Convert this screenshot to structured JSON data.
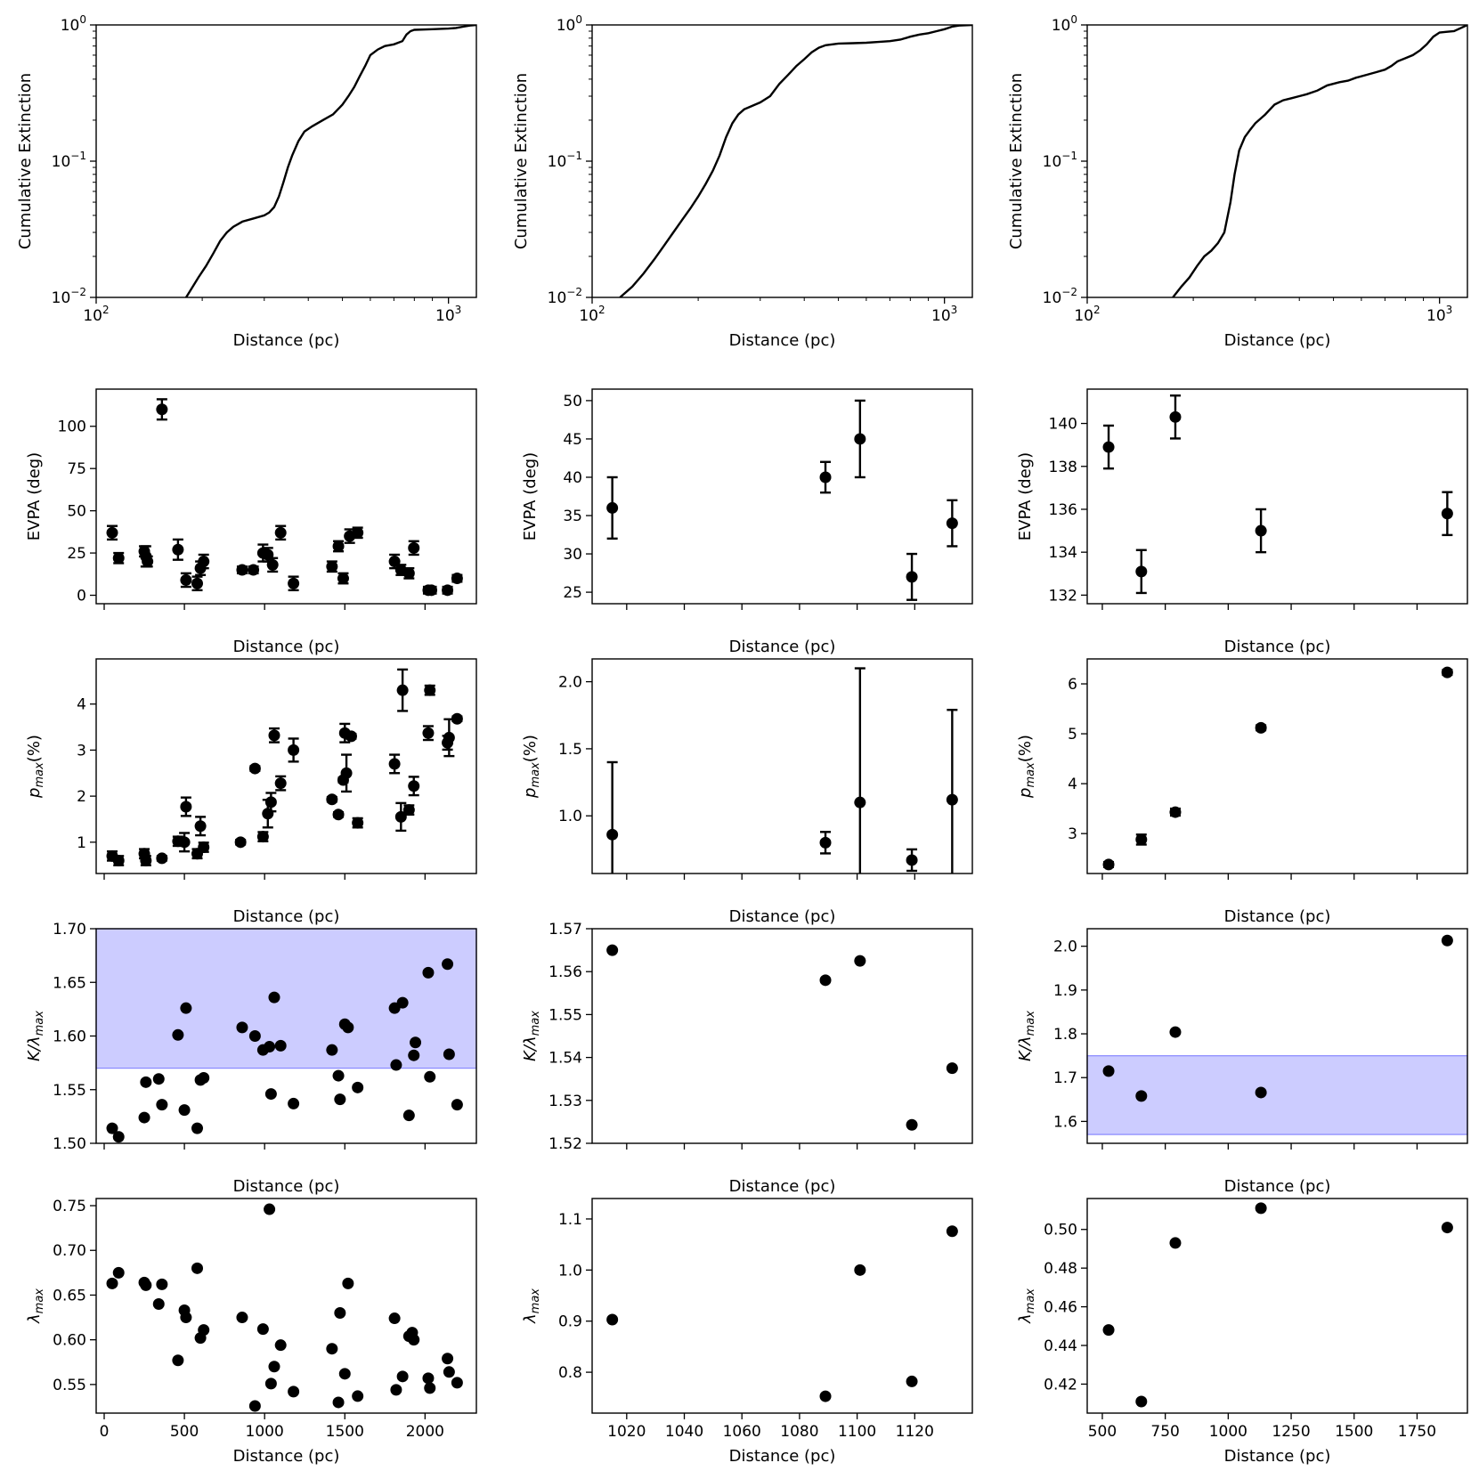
{
  "chart_data": [
    {
      "id": "p1",
      "type": "line",
      "xlabel": "Distance (pc)",
      "ylabel": "Cumulative Extinction",
      "xscale": "log",
      "yscale": "log",
      "xlim": [
        100,
        1200
      ],
      "ylim": [
        0.01,
        1
      ],
      "xticks": [
        {
          "v": 100,
          "label": "10",
          "sup": "2"
        },
        {
          "v": 1000,
          "label": "10",
          "sup": "3"
        }
      ],
      "yticks": [
        {
          "v": 0.01,
          "label": "10",
          "sup": "−2"
        },
        {
          "v": 0.1,
          "label": "10",
          "sup": "−1"
        },
        {
          "v": 1,
          "label": "10",
          "sup": "0"
        }
      ],
      "series": [
        {
          "name": "cumulative",
          "x": [
            180,
            188,
            195,
            205,
            215,
            225,
            235,
            245,
            260,
            280,
            300,
            310,
            320,
            330,
            340,
            350,
            360,
            375,
            390,
            410,
            440,
            470,
            500,
            520,
            540,
            560,
            580,
            600,
            630,
            660,
            700,
            740,
            760,
            780,
            800,
            900,
            1000,
            1050,
            1100,
            1150,
            1200
          ],
          "y": [
            0.01,
            0.012,
            0.014,
            0.017,
            0.021,
            0.026,
            0.03,
            0.033,
            0.036,
            0.038,
            0.04,
            0.042,
            0.046,
            0.055,
            0.07,
            0.09,
            0.11,
            0.14,
            0.165,
            0.18,
            0.2,
            0.22,
            0.26,
            0.3,
            0.35,
            0.42,
            0.5,
            0.6,
            0.66,
            0.7,
            0.72,
            0.76,
            0.85,
            0.9,
            0.92,
            0.93,
            0.94,
            0.95,
            0.97,
            0.99,
            1.0
          ]
        }
      ]
    },
    {
      "id": "p2",
      "type": "line",
      "xlabel": "Distance (pc)",
      "ylabel": "Cumulative Extinction",
      "xscale": "log",
      "yscale": "log",
      "xlim": [
        100,
        1200
      ],
      "ylim": [
        0.01,
        1
      ],
      "xticks": [
        {
          "v": 100,
          "label": "10",
          "sup": "2"
        },
        {
          "v": 1000,
          "label": "10",
          "sup": "3"
        }
      ],
      "yticks": [
        {
          "v": 0.01,
          "label": "10",
          "sup": "−2"
        },
        {
          "v": 0.1,
          "label": "10",
          "sup": "−1"
        },
        {
          "v": 1,
          "label": "10",
          "sup": "0"
        }
      ],
      "series": [
        {
          "name": "cumulative",
          "x": [
            120,
            130,
            140,
            150,
            160,
            170,
            180,
            190,
            200,
            210,
            220,
            230,
            240,
            250,
            260,
            270,
            280,
            290,
            300,
            320,
            340,
            360,
            380,
            400,
            420,
            440,
            460,
            500,
            550,
            600,
            650,
            700,
            750,
            800,
            850,
            900,
            950,
            1000,
            1050,
            1100,
            1200
          ],
          "y": [
            0.01,
            0.012,
            0.015,
            0.019,
            0.024,
            0.03,
            0.037,
            0.045,
            0.055,
            0.068,
            0.085,
            0.11,
            0.15,
            0.19,
            0.22,
            0.24,
            0.25,
            0.26,
            0.27,
            0.3,
            0.37,
            0.43,
            0.5,
            0.56,
            0.63,
            0.68,
            0.71,
            0.73,
            0.735,
            0.74,
            0.75,
            0.76,
            0.78,
            0.82,
            0.85,
            0.87,
            0.9,
            0.93,
            0.97,
            0.99,
            1.0
          ]
        }
      ]
    },
    {
      "id": "p3",
      "type": "line",
      "xlabel": "Distance (pc)",
      "ylabel": "Cumulative Extinction",
      "xscale": "log",
      "yscale": "log",
      "xlim": [
        100,
        1200
      ],
      "ylim": [
        0.01,
        1
      ],
      "xticks": [
        {
          "v": 100,
          "label": "10",
          "sup": "2"
        },
        {
          "v": 1000,
          "label": "10",
          "sup": "3"
        }
      ],
      "yticks": [
        {
          "v": 0.01,
          "label": "10",
          "sup": "−2"
        },
        {
          "v": 0.1,
          "label": "10",
          "sup": "−1"
        },
        {
          "v": 1,
          "label": "10",
          "sup": "0"
        }
      ],
      "series": [
        {
          "name": "cumulative",
          "x": [
            175,
            185,
            195,
            205,
            215,
            225,
            235,
            245,
            255,
            262,
            270,
            280,
            290,
            300,
            320,
            340,
            360,
            380,
            400,
            420,
            450,
            480,
            500,
            520,
            550,
            580,
            620,
            660,
            700,
            730,
            760,
            800,
            840,
            880,
            920,
            960,
            1000,
            1050,
            1100,
            1150,
            1200
          ],
          "y": [
            0.01,
            0.012,
            0.014,
            0.017,
            0.02,
            0.022,
            0.025,
            0.03,
            0.05,
            0.08,
            0.12,
            0.15,
            0.17,
            0.19,
            0.22,
            0.26,
            0.28,
            0.29,
            0.3,
            0.31,
            0.33,
            0.36,
            0.37,
            0.38,
            0.39,
            0.41,
            0.43,
            0.45,
            0.47,
            0.5,
            0.54,
            0.57,
            0.6,
            0.65,
            0.72,
            0.82,
            0.88,
            0.89,
            0.9,
            0.95,
            1.0
          ]
        }
      ]
    },
    {
      "id": "p4",
      "type": "scatter",
      "xlabel": "Distance (pc)",
      "ylabel": "EVPA (deg)",
      "xlim": [
        -50,
        2320
      ],
      "ylim": [
        -5,
        122
      ],
      "yticks": [
        0,
        25,
        50,
        75,
        100
      ],
      "xticks": [
        0,
        500,
        1000,
        1500,
        2000
      ],
      "show_xtick_labels": false,
      "x": [
        50,
        90,
        250,
        260,
        270,
        360,
        460,
        510,
        580,
        600,
        620,
        860,
        930,
        990,
        1020,
        1050,
        1100,
        1180,
        1420,
        1460,
        1490,
        1530,
        1580,
        1810,
        1850,
        1900,
        1930,
        2020,
        2040,
        2140,
        2200
      ],
      "y": [
        37,
        22,
        26,
        23,
        20,
        110,
        27,
        9,
        7,
        16,
        20,
        15,
        15,
        25,
        24,
        18,
        37,
        7,
        17,
        29,
        10,
        35,
        37,
        20,
        15,
        13,
        28,
        3,
        3,
        3,
        10
      ],
      "err": [
        4,
        3,
        3,
        6,
        3,
        6,
        6,
        4,
        4,
        4,
        4,
        2,
        2,
        5,
        4,
        4,
        4,
        4,
        3,
        3,
        3,
        4,
        3,
        4,
        3,
        3,
        4,
        2,
        2,
        2,
        2
      ]
    },
    {
      "id": "p5",
      "type": "scatter",
      "xlabel": "Distance (pc)",
      "ylabel": "EVPA (deg)",
      "xlim": [
        1008,
        1140
      ],
      "ylim": [
        23.5,
        51.5
      ],
      "yticks": [
        25,
        30,
        35,
        40,
        45,
        50
      ],
      "xticks": [
        1020,
        1040,
        1060,
        1080,
        1100,
        1120
      ],
      "show_xtick_labels": false,
      "x": [
        1015,
        1089,
        1101,
        1119,
        1133
      ],
      "y": [
        36,
        40,
        45,
        27,
        34
      ],
      "err": [
        4,
        2,
        5,
        3,
        3
      ]
    },
    {
      "id": "p6",
      "type": "scatter",
      "xlabel": "Distance (pc)",
      "ylabel": "EVPA (deg)",
      "xlim": [
        440,
        1950
      ],
      "ylim": [
        131.6,
        141.6
      ],
      "yticks": [
        132,
        134,
        136,
        138,
        140
      ],
      "xticks": [
        500,
        750,
        1000,
        1250,
        1500,
        1750
      ],
      "show_xtick_labels": false,
      "x": [
        525,
        655,
        790,
        1130,
        1870
      ],
      "y": [
        138.9,
        133.1,
        140.3,
        135,
        135.8
      ],
      "err": [
        1,
        1,
        1,
        1,
        1
      ]
    },
    {
      "id": "p7",
      "type": "scatter",
      "xlabel": "Distance (pc)",
      "ylabel": "p_max(%)",
      "xlim": [
        -50,
        2320
      ],
      "ylim": [
        0.32,
        4.98
      ],
      "yticks": [
        1,
        2,
        3,
        4
      ],
      "xticks": [
        0,
        500,
        1000,
        1500,
        2000
      ],
      "show_xtick_labels": false,
      "x": [
        50,
        90,
        250,
        260,
        360,
        460,
        500,
        510,
        580,
        600,
        620,
        850,
        940,
        990,
        1020,
        1040,
        1060,
        1100,
        1180,
        1420,
        1460,
        1490,
        1500,
        1510,
        1540,
        1580,
        1810,
        1850,
        1860,
        1900,
        1930,
        2020,
        2030,
        2140,
        2150,
        2200
      ],
      "y": [
        0.7,
        0.6,
        0.75,
        0.6,
        0.65,
        1.02,
        1.0,
        1.77,
        0.75,
        1.35,
        0.89,
        1.0,
        2.6,
        1.12,
        1.62,
        1.87,
        3.32,
        2.28,
        3.0,
        1.93,
        1.6,
        2.35,
        3.37,
        2.5,
        3.3,
        1.42,
        2.7,
        1.55,
        4.3,
        1.7,
        2.22,
        3.37,
        4.3,
        3.16,
        3.27,
        3.68
      ],
      "err": [
        0.1,
        0.1,
        0.1,
        0.1,
        0.05,
        0.1,
        0.2,
        0.2,
        0.1,
        0.2,
        0.1,
        0.05,
        0.05,
        0.1,
        0.3,
        0.2,
        0.15,
        0.15,
        0.25,
        0.05,
        0.05,
        0.05,
        0.2,
        0.4,
        0.05,
        0.1,
        0.2,
        0.3,
        0.45,
        0.1,
        0.2,
        0.15,
        0.1,
        0.15,
        0.4,
        0.05
      ]
    },
    {
      "id": "p8",
      "type": "scatter",
      "xlabel": "Distance (pc)",
      "ylabel": "p_max(%)",
      "xlim": [
        1008,
        1140
      ],
      "ylim": [
        0.57,
        2.17
      ],
      "yticks": [
        1.0,
        1.5,
        2.0
      ],
      "ytick_decimals": 1,
      "xticks": [
        1020,
        1040,
        1060,
        1080,
        1100,
        1120
      ],
      "show_xtick_labels": false,
      "x": [
        1015,
        1089,
        1101,
        1119,
        1133
      ],
      "y": [
        0.86,
        0.8,
        1.1,
        0.67,
        1.12
      ],
      "err": [
        0.54,
        0.08,
        1.0,
        0.08,
        0.67
      ]
    },
    {
      "id": "p9",
      "type": "scatter",
      "xlabel": "Distance (pc)",
      "ylabel": "p_max(%)",
      "xlim": [
        440,
        1950
      ],
      "ylim": [
        2.2,
        6.5
      ],
      "yticks": [
        3,
        4,
        5,
        6
      ],
      "xticks": [
        500,
        750,
        1000,
        1250,
        1500,
        1750
      ],
      "show_xtick_labels": false,
      "x": [
        525,
        655,
        790,
        1130,
        1870
      ],
      "y": [
        2.38,
        2.88,
        3.43,
        5.12,
        6.23
      ],
      "err": [
        0.05,
        0.1,
        0.07,
        0.05,
        0.05
      ]
    },
    {
      "id": "p10",
      "type": "scatter",
      "xlabel": "Distance (pc)",
      "ylabel": "K/λ_max",
      "xlim": [
        -50,
        2320
      ],
      "ylim": [
        1.5,
        1.7
      ],
      "yticks": [
        1.5,
        1.55,
        1.6,
        1.65,
        1.7
      ],
      "ytick_decimals": 2,
      "xticks": [
        0,
        500,
        1000,
        1500,
        2000
      ],
      "show_xtick_labels": false,
      "band": [
        1.57,
        1.7
      ],
      "x": [
        50,
        90,
        250,
        260,
        340,
        360,
        460,
        500,
        510,
        580,
        600,
        620,
        860,
        940,
        990,
        1030,
        1040,
        1060,
        1100,
        1180,
        1420,
        1460,
        1470,
        1500,
        1520,
        1580,
        1810,
        1820,
        1860,
        1900,
        1930,
        1940,
        2020,
        2030,
        2140,
        2150,
        2200
      ],
      "y": [
        1.514,
        1.506,
        1.524,
        1.557,
        1.56,
        1.536,
        1.601,
        1.531,
        1.626,
        1.514,
        1.559,
        1.561,
        1.608,
        1.6,
        1.587,
        1.59,
        1.546,
        1.636,
        1.591,
        1.537,
        1.587,
        1.563,
        1.541,
        1.611,
        1.608,
        1.552,
        1.626,
        1.573,
        1.631,
        1.526,
        1.582,
        1.594,
        1.659,
        1.562,
        1.667,
        1.583,
        1.536
      ]
    },
    {
      "id": "p11",
      "type": "scatter",
      "xlabel": "Distance (pc)",
      "ylabel": "K/λ_max",
      "xlim": [
        1008,
        1140
      ],
      "ylim": [
        1.52,
        1.57
      ],
      "yticks": [
        1.52,
        1.53,
        1.54,
        1.55,
        1.56,
        1.57
      ],
      "ytick_decimals": 2,
      "xticks": [
        1020,
        1040,
        1060,
        1080,
        1100,
        1120
      ],
      "show_xtick_labels": false,
      "x": [
        1015,
        1089,
        1101,
        1119,
        1133
      ],
      "y": [
        1.565,
        1.558,
        1.5625,
        1.5243,
        1.5375
      ]
    },
    {
      "id": "p12",
      "type": "scatter",
      "xlabel": "Distance (pc)",
      "ylabel": "K/λ_max",
      "xlim": [
        440,
        1950
      ],
      "ylim": [
        1.55,
        2.04
      ],
      "yticks": [
        1.6,
        1.7,
        1.8,
        1.9,
        2.0
      ],
      "ytick_decimals": 1,
      "xticks": [
        500,
        750,
        1000,
        1250,
        1500,
        1750
      ],
      "show_xtick_labels": false,
      "band": [
        1.57,
        1.75
      ],
      "x": [
        525,
        655,
        790,
        1130,
        1870
      ],
      "y": [
        1.715,
        1.658,
        1.804,
        1.666,
        2.013
      ]
    },
    {
      "id": "p13",
      "type": "scatter",
      "xlabel": "Distance (pc)",
      "ylabel": "λ_max",
      "xlim": [
        -50,
        2320
      ],
      "ylim": [
        0.518,
        0.758
      ],
      "yticks": [
        0.55,
        0.6,
        0.65,
        0.7,
        0.75
      ],
      "ytick_decimals": 2,
      "xticks": [
        0,
        500,
        1000,
        1500,
        2000
      ],
      "show_xtick_labels": true,
      "x": [
        50,
        90,
        250,
        260,
        340,
        360,
        460,
        500,
        510,
        580,
        600,
        620,
        860,
        940,
        990,
        1030,
        1040,
        1060,
        1100,
        1180,
        1420,
        1460,
        1470,
        1500,
        1520,
        1580,
        1810,
        1820,
        1860,
        1900,
        1920,
        1930,
        2020,
        2030,
        2140,
        2150,
        2200
      ],
      "y": [
        0.663,
        0.675,
        0.664,
        0.661,
        0.64,
        0.662,
        0.577,
        0.633,
        0.625,
        0.68,
        0.602,
        0.611,
        0.625,
        0.526,
        0.612,
        0.746,
        0.551,
        0.57,
        0.594,
        0.542,
        0.59,
        0.53,
        0.63,
        0.562,
        0.663,
        0.537,
        0.624,
        0.544,
        0.559,
        0.604,
        0.608,
        0.6,
        0.557,
        0.546,
        0.579,
        0.564,
        0.552
      ]
    },
    {
      "id": "p14",
      "type": "scatter",
      "xlabel": "Distance (pc)",
      "ylabel": "λ_max",
      "xlim": [
        1008,
        1140
      ],
      "ylim": [
        0.72,
        1.14
      ],
      "yticks": [
        0.8,
        0.9,
        1.0,
        1.1
      ],
      "ytick_decimals": 1,
      "xticks": [
        1020,
        1040,
        1060,
        1080,
        1100,
        1120
      ],
      "show_xtick_labels": true,
      "x": [
        1015,
        1089,
        1101,
        1119,
        1133
      ],
      "y": [
        0.903,
        0.753,
        1.0,
        0.782,
        1.076
      ]
    },
    {
      "id": "p15",
      "type": "scatter",
      "xlabel": "Distance (pc)",
      "ylabel": "λ_max",
      "xlim": [
        440,
        1950
      ],
      "ylim": [
        0.405,
        0.516
      ],
      "yticks": [
        0.42,
        0.44,
        0.46,
        0.48,
        0.5
      ],
      "ytick_decimals": 2,
      "xticks": [
        500,
        750,
        1000,
        1250,
        1500,
        1750
      ],
      "show_xtick_labels": true,
      "x": [
        525,
        655,
        790,
        1130,
        1870
      ],
      "y": [
        0.448,
        0.411,
        0.493,
        0.511,
        0.501
      ]
    }
  ]
}
